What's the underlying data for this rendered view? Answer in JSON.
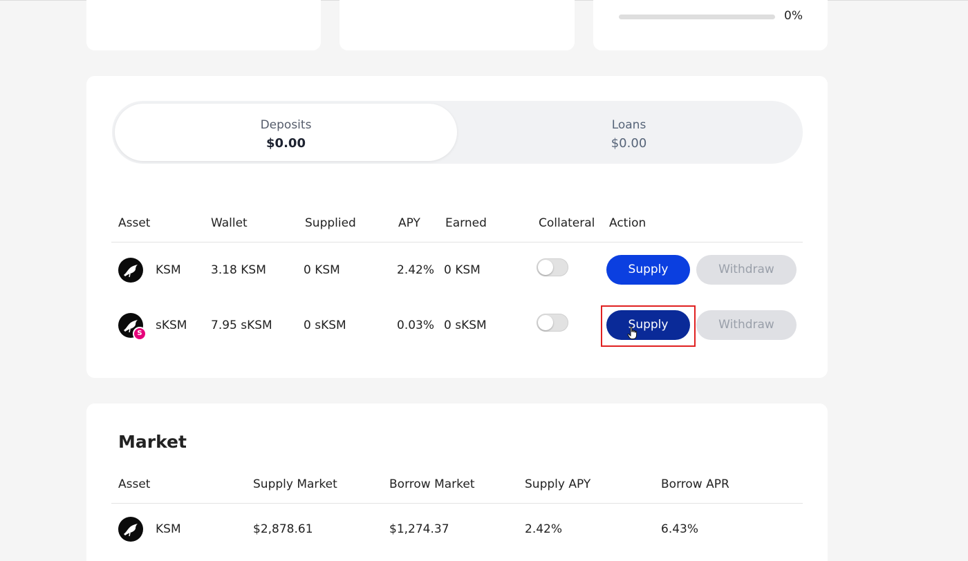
{
  "summary": {
    "utilization_label": "0%",
    "utilization_value": 0
  },
  "tabs": [
    {
      "label": "Deposits",
      "value": "$0.00"
    },
    {
      "label": "Loans",
      "value": "$0.00"
    }
  ],
  "positions": {
    "headers": [
      "Asset",
      "Wallet",
      "Supplied",
      "APY",
      "Earned",
      "Collateral",
      "Action"
    ],
    "rows": [
      {
        "asset": "KSM",
        "wallet": "3.18 KSM",
        "supplied": "0 KSM",
        "apy": "2.42%",
        "earned": "0 KSM",
        "collateral": false,
        "supply_label": "Supply",
        "withdraw_label": "Withdraw"
      },
      {
        "asset": "sKSM",
        "wallet": "7.95 sKSM",
        "supplied": "0 sKSM",
        "apy": "0.03%",
        "earned": "0 sKSM",
        "collateral": false,
        "supply_label": "Supply",
        "withdraw_label": "Withdraw"
      }
    ]
  },
  "market": {
    "title": "Market",
    "headers": [
      "Asset",
      "Supply Market",
      "Borrow Market",
      "Supply APY",
      "Borrow APR"
    ],
    "rows": [
      {
        "asset": "KSM",
        "supply_market": "$2,878.61",
        "borrow_market": "$1,274.37",
        "supply_apy": "2.42%",
        "borrow_apr": "6.43%"
      }
    ]
  },
  "icons": {
    "asset": "kusama-bird-icon",
    "badge": "s-badge-icon",
    "badge_letter": "S",
    "cursor": "hand-pointer-icon"
  },
  "colors": {
    "supply_button": "#0b3fe0",
    "supply_button_hover": "#0a2a98",
    "withdraw_button": "#dfe0e4",
    "badge": "#e6007a",
    "highlight": "#e02020"
  }
}
